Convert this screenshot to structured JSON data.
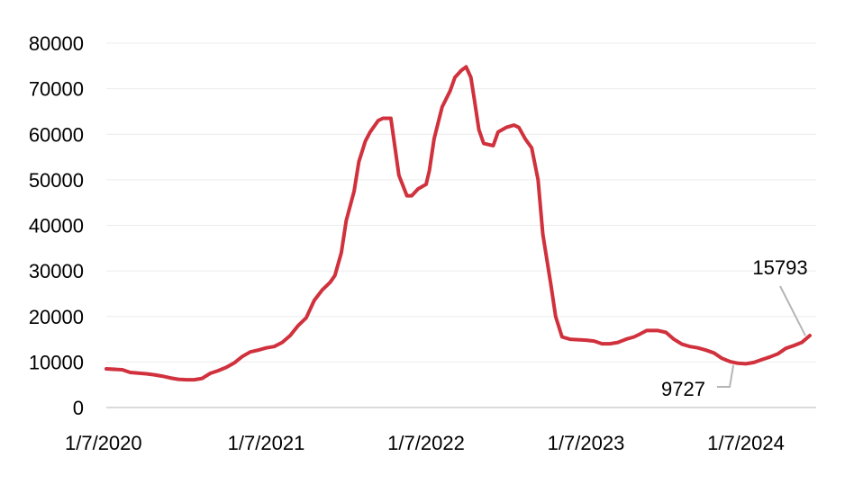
{
  "chart_data": {
    "type": "line",
    "title": "",
    "xlabel": "",
    "ylabel": "",
    "ylim": [
      0,
      80000
    ],
    "yticks": [
      "0",
      "10000",
      "20000",
      "30000",
      "40000",
      "50000",
      "60000",
      "70000",
      "80000"
    ],
    "xticks": [
      {
        "label": "1/7/2020",
        "t": 0
      },
      {
        "label": "1/7/2021",
        "t": 1
      },
      {
        "label": "1/7/2022",
        "t": 2
      },
      {
        "label": "1/7/2023",
        "t": 3
      },
      {
        "label": "1/7/2024",
        "t": 4
      }
    ],
    "x_unit": "years since 1/7/2020",
    "xlim": [
      0,
      4.4
    ],
    "grid": "horizontal",
    "series": [
      {
        "name": "",
        "color": "#d0313d",
        "points": [
          [
            0.0,
            8500
          ],
          [
            0.1,
            8300
          ],
          [
            0.15,
            7700
          ],
          [
            0.25,
            7400
          ],
          [
            0.3,
            7200
          ],
          [
            0.35,
            6900
          ],
          [
            0.4,
            6500
          ],
          [
            0.45,
            6200
          ],
          [
            0.5,
            6100
          ],
          [
            0.55,
            6100
          ],
          [
            0.6,
            6400
          ],
          [
            0.65,
            7500
          ],
          [
            0.7,
            8100
          ],
          [
            0.75,
            8800
          ],
          [
            0.8,
            9800
          ],
          [
            0.85,
            11200
          ],
          [
            0.9,
            12200
          ],
          [
            0.95,
            12600
          ],
          [
            1.0,
            13100
          ],
          [
            1.05,
            13400
          ],
          [
            1.1,
            14300
          ],
          [
            1.15,
            15800
          ],
          [
            1.2,
            18000
          ],
          [
            1.25,
            19700
          ],
          [
            1.3,
            23500
          ],
          [
            1.35,
            25800
          ],
          [
            1.4,
            27500
          ],
          [
            1.43,
            29000
          ],
          [
            1.47,
            34000
          ],
          [
            1.5,
            41000
          ],
          [
            1.55,
            47500
          ],
          [
            1.58,
            54000
          ],
          [
            1.62,
            58500
          ],
          [
            1.65,
            60500
          ],
          [
            1.7,
            63000
          ],
          [
            1.73,
            63500
          ],
          [
            1.78,
            63500
          ],
          [
            1.83,
            51000
          ],
          [
            1.88,
            46500
          ],
          [
            1.91,
            46500
          ],
          [
            1.95,
            48000
          ],
          [
            2.0,
            49000
          ],
          [
            2.02,
            52000
          ],
          [
            2.05,
            59000
          ],
          [
            2.1,
            66000
          ],
          [
            2.15,
            69500
          ],
          [
            2.18,
            72500
          ],
          [
            2.22,
            74000
          ],
          [
            2.25,
            74800
          ],
          [
            2.28,
            72500
          ],
          [
            2.3,
            68000
          ],
          [
            2.33,
            61000
          ],
          [
            2.36,
            58000
          ],
          [
            2.42,
            57500
          ],
          [
            2.45,
            60500
          ],
          [
            2.5,
            61500
          ],
          [
            2.55,
            62000
          ],
          [
            2.58,
            61500
          ],
          [
            2.62,
            59000
          ],
          [
            2.66,
            57000
          ],
          [
            2.7,
            50000
          ],
          [
            2.73,
            38000
          ],
          [
            2.78,
            27000
          ],
          [
            2.81,
            20000
          ],
          [
            2.85,
            15500
          ],
          [
            2.9,
            15000
          ],
          [
            2.95,
            14900
          ],
          [
            3.0,
            14800
          ],
          [
            3.05,
            14600
          ],
          [
            3.1,
            14000
          ],
          [
            3.15,
            14000
          ],
          [
            3.2,
            14300
          ],
          [
            3.25,
            15000
          ],
          [
            3.3,
            15500
          ],
          [
            3.33,
            16000
          ],
          [
            3.38,
            16900
          ],
          [
            3.45,
            16900
          ],
          [
            3.5,
            16500
          ],
          [
            3.55,
            15000
          ],
          [
            3.6,
            13900
          ],
          [
            3.65,
            13400
          ],
          [
            3.7,
            13100
          ],
          [
            3.75,
            12600
          ],
          [
            3.8,
            12000
          ],
          [
            3.85,
            10800
          ],
          [
            3.9,
            10100
          ],
          [
            3.95,
            9727
          ],
          [
            4.0,
            9600
          ],
          [
            4.05,
            9900
          ],
          [
            4.1,
            10500
          ],
          [
            4.15,
            11100
          ],
          [
            4.2,
            11800
          ],
          [
            4.25,
            13000
          ],
          [
            4.3,
            13600
          ],
          [
            4.35,
            14300
          ],
          [
            4.4,
            15793
          ]
        ]
      }
    ],
    "annotations": [
      {
        "label": "15793",
        "t": 4.4,
        "y": 15793
      },
      {
        "label": "9727",
        "t": 3.95,
        "y": 9727
      }
    ]
  }
}
